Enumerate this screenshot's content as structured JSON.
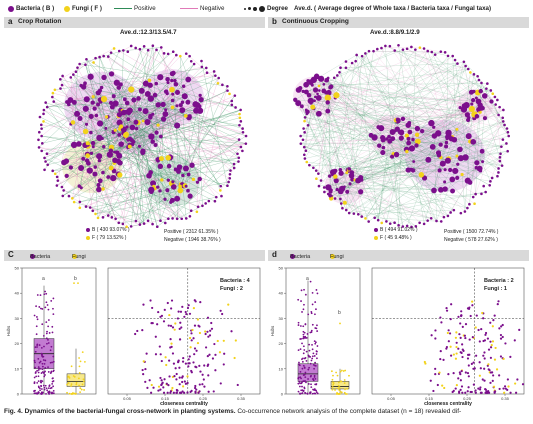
{
  "legend": {
    "bacteria": "Bacteria ( B )",
    "fungi": "Fungi ( F )",
    "positive": "Positive",
    "negative": "Negative",
    "degree": "Degree",
    "degree_desc": "Ave.d. ( Average degree of Whole taxa / Bacteria taxa / Fungal taxa)"
  },
  "panels": {
    "a": {
      "letter": "a",
      "title": "Crop Rotation",
      "ave": "Ave.d.:12.3/13.5/4.7",
      "stat_b": "B ( 430 93.07% )",
      "stat_f": "F ( 79 13.52% )",
      "stat_pos": "Positive ( 2312 61.35% )",
      "stat_neg": "Negative ( 1946 38.76% )"
    },
    "b": {
      "letter": "b",
      "title": "Continuous Cropping",
      "ave": "Ave.d.:8.8/9.1/2.9",
      "stat_b": "B ( 494 91.02% )",
      "stat_f": "F ( 45 9.48% )",
      "stat_pos": "Positive ( 1500 72.74% )",
      "stat_neg": "Negative ( 578 27.62% )"
    },
    "c": {
      "letter": "C",
      "legend_b": "Bacteria",
      "legend_f": "Fungi",
      "box_letter_b": "a",
      "box_letter_f": "b",
      "scatter_label_b": "Bacteria : 4",
      "scatter_label_f": "Fungi : 2",
      "ylabel": "Hubs",
      "xlabel": "closeness centrality",
      "xticks": [
        "0.05",
        "0.15",
        "0.25",
        "0.35"
      ],
      "yticks": [
        "0",
        "10",
        "20",
        "30",
        "40",
        "50"
      ]
    },
    "d": {
      "letter": "d",
      "legend_b": "Bacteria",
      "legend_f": "Fungi",
      "box_letter_b": "a",
      "box_letter_f": "b",
      "scatter_label_b": "Bacteria : 2",
      "scatter_label_f": "Fungi : 1",
      "ylabel": "Hubs",
      "xlabel": "closeness centrality",
      "xticks": [
        "0.05",
        "0.15",
        "0.25",
        "0.35"
      ],
      "yticks": [
        "0",
        "10",
        "20",
        "30",
        "40",
        "50"
      ]
    }
  },
  "caption": {
    "bold": "Fig. 4. Dynamics of the bacterial-fungal cross-network in planting systems.",
    "rest": " Co-occurrence network analysis of the complete dataset (n = 18) revealed dif-"
  },
  "colors": {
    "bacteria": "#7b0f8c",
    "fungi": "#f2d21b",
    "positive": "#2e8b57",
    "negative": "#e07ab8",
    "panel_header": "#d9d9d9"
  },
  "chart_data": [
    {
      "type": "scatter",
      "panel": "c",
      "title": "",
      "xlabel": "closeness centrality",
      "ylabel": "Hubs",
      "xlim": [
        0.0,
        0.4
      ],
      "ylim": [
        0,
        50
      ],
      "threshold_x": 0.21,
      "threshold_y": 30,
      "series": [
        {
          "name": "Bacteria",
          "count_label": "Bacteria : 4"
        },
        {
          "name": "Fungi",
          "count_label": "Fungi : 2"
        }
      ]
    },
    {
      "type": "scatter",
      "panel": "d",
      "title": "",
      "xlabel": "closeness centrality",
      "ylabel": "Hubs",
      "xlim": [
        0.0,
        0.4
      ],
      "ylim": [
        0,
        50
      ],
      "threshold_x": 0.27,
      "threshold_y": 30,
      "series": [
        {
          "name": "Bacteria",
          "count_label": "Bacteria : 2"
        },
        {
          "name": "Fungi",
          "count_label": "Fungi : 1"
        }
      ]
    }
  ]
}
